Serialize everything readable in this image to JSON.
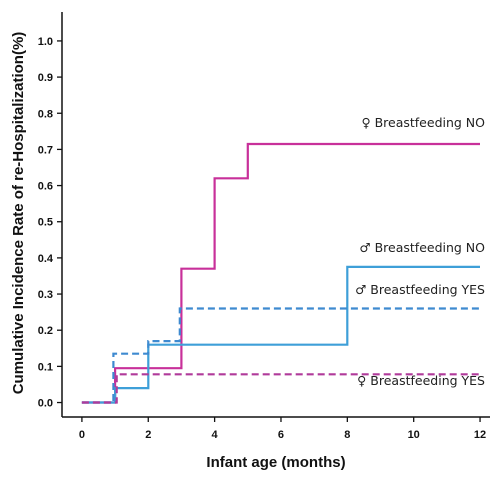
{
  "chart_data": {
    "type": "line",
    "step": true,
    "xlabel": "Infant age (months)",
    "ylabel": "Cumulative Incidence Rate of re-Hospitalization(%)",
    "xlim": [
      -0.6,
      12.3
    ],
    "ylim": [
      -0.04,
      1.08
    ],
    "xticks": [
      0,
      2,
      4,
      6,
      8,
      10,
      12
    ],
    "yticks": [
      0.0,
      0.1,
      0.2,
      0.3,
      0.4,
      0.5,
      0.6,
      0.7,
      0.8,
      0.9,
      1.0
    ],
    "ytick_labels": [
      "0.0",
      "0.1",
      "0.2",
      "0.3",
      "0.4",
      "0.5",
      "0.6",
      "0.7",
      "0.8",
      "0.9",
      "1.0"
    ],
    "grid": false,
    "series": [
      {
        "name": "♀ Breastfeeding NO",
        "color": "#c8309a",
        "dash": "solid",
        "points": [
          [
            0,
            0.0
          ],
          [
            1,
            0.0
          ],
          [
            1,
            0.095
          ],
          [
            3,
            0.095
          ],
          [
            3,
            0.37
          ],
          [
            4,
            0.37
          ],
          [
            4,
            0.62
          ],
          [
            5,
            0.62
          ],
          [
            5,
            0.715
          ],
          [
            12,
            0.715
          ]
        ]
      },
      {
        "name": "♂ Breastfeeding NO",
        "color": "#3e9fd8",
        "dash": "solid",
        "points": [
          [
            0,
            0.0
          ],
          [
            1,
            0.0
          ],
          [
            1,
            0.04
          ],
          [
            2,
            0.04
          ],
          [
            2,
            0.16
          ],
          [
            8,
            0.16
          ],
          [
            8,
            0.375
          ],
          [
            12,
            0.375
          ]
        ]
      },
      {
        "name": "♂ Breastfeeding YES",
        "color": "#3e8ad0",
        "dash": "dashed",
        "points": [
          [
            0,
            0.0
          ],
          [
            0.95,
            0.0
          ],
          [
            0.95,
            0.135
          ],
          [
            2,
            0.135
          ],
          [
            2,
            0.17
          ],
          [
            2.95,
            0.17
          ],
          [
            2.95,
            0.26
          ],
          [
            12,
            0.26
          ]
        ]
      },
      {
        "name": "♀ Breastfeeding YES",
        "color": "#b03a9a",
        "dash": "dashed",
        "points": [
          [
            0,
            0.0
          ],
          [
            1.05,
            0.0
          ],
          [
            1.05,
            0.078
          ],
          [
            12,
            0.078
          ]
        ]
      }
    ]
  }
}
